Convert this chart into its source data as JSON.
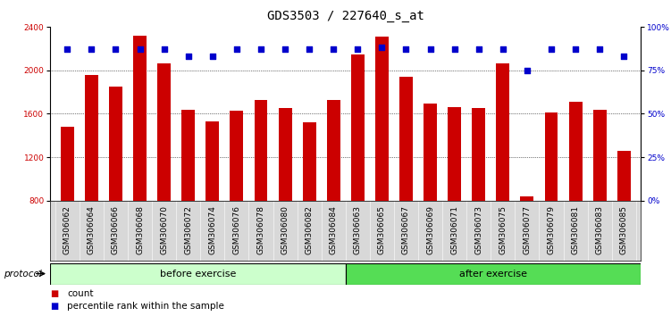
{
  "title": "GDS3503 / 227640_s_at",
  "categories": [
    "GSM306062",
    "GSM306064",
    "GSM306066",
    "GSM306068",
    "GSM306070",
    "GSM306072",
    "GSM306074",
    "GSM306076",
    "GSM306078",
    "GSM306080",
    "GSM306082",
    "GSM306084",
    "GSM306063",
    "GSM306065",
    "GSM306067",
    "GSM306069",
    "GSM306071",
    "GSM306073",
    "GSM306075",
    "GSM306077",
    "GSM306079",
    "GSM306081",
    "GSM306083",
    "GSM306085"
  ],
  "bar_values": [
    1480,
    1960,
    1850,
    2320,
    2060,
    1640,
    1530,
    1630,
    1730,
    1650,
    1520,
    1730,
    2150,
    2310,
    1940,
    1690,
    1660,
    1650,
    2060,
    840,
    1610,
    1710,
    1640,
    1260
  ],
  "percentile_values": [
    87,
    87,
    87,
    87,
    87,
    83,
    83,
    87,
    87,
    87,
    87,
    87,
    87,
    88,
    87,
    87,
    87,
    87,
    87,
    75,
    87,
    87,
    87,
    83
  ],
  "bar_color": "#cc0000",
  "percentile_color": "#0000cc",
  "ylim_left": [
    800,
    2400
  ],
  "ylim_right": [
    0,
    100
  ],
  "yticks_left": [
    800,
    1200,
    1600,
    2000,
    2400
  ],
  "yticks_right": [
    0,
    25,
    50,
    75,
    100
  ],
  "grid_values": [
    1200,
    1600,
    2000
  ],
  "before_exercise_count": 12,
  "after_exercise_count": 12,
  "protocol_label": "protocol",
  "before_label": "before exercise",
  "after_label": "after exercise",
  "legend_count_label": "count",
  "legend_percentile_label": "percentile rank within the sample",
  "before_color": "#ccffcc",
  "after_color": "#55dd55",
  "bar_width": 0.55,
  "title_fontsize": 10,
  "tick_fontsize": 6.5,
  "right_tick_color": "#0000cc",
  "left_tick_color": "#cc0000"
}
